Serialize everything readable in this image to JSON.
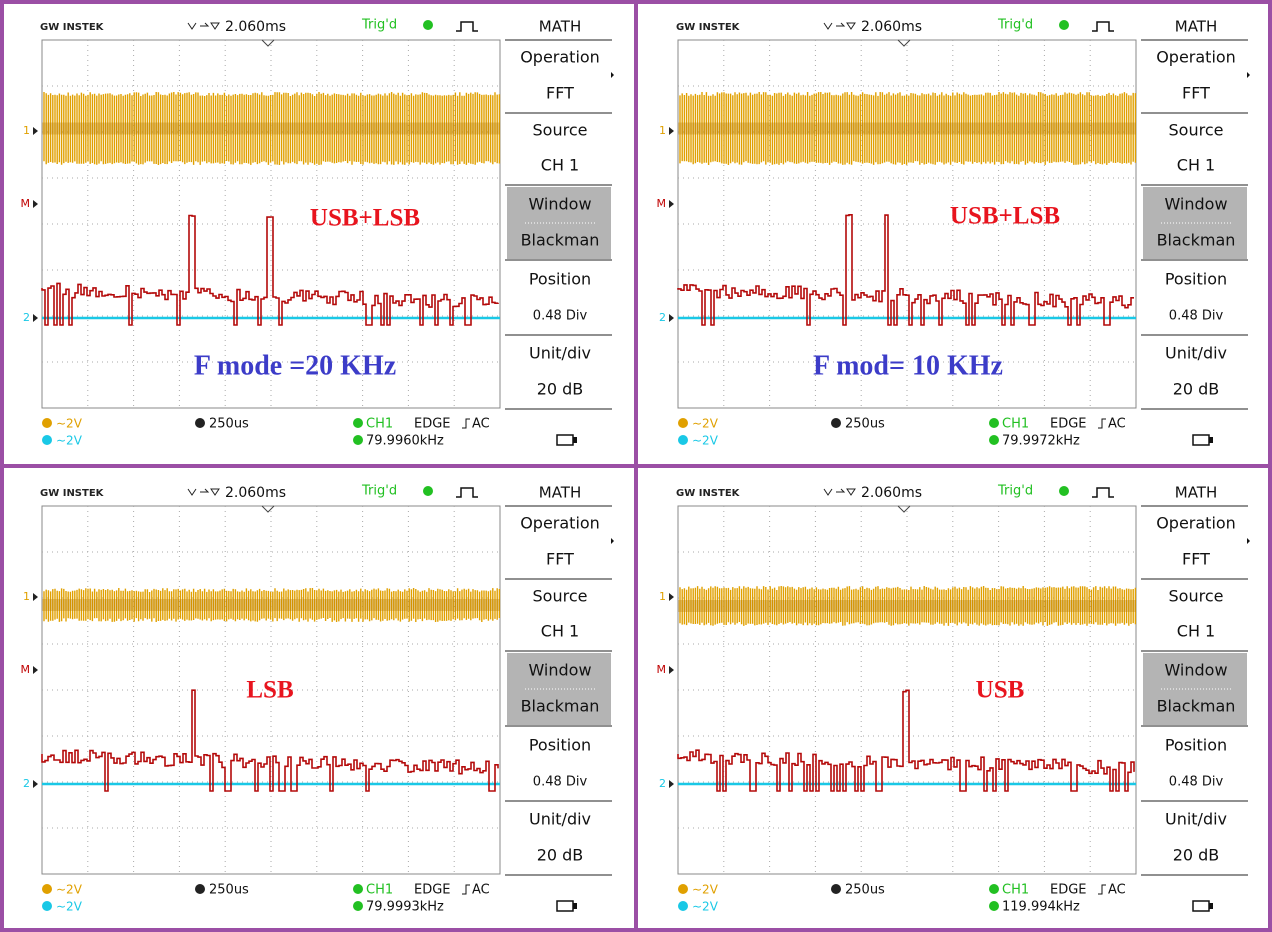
{
  "panels": [
    {
      "header": {
        "brand": "GW INSTEK",
        "delay": "2.060ms",
        "trigger_status": "Trig'd"
      },
      "menu": {
        "title": "MATH",
        "items": [
          "Operation",
          "FFT",
          "Source",
          "CH 1",
          "Window",
          "Blackman",
          "Position",
          "0.48 Div",
          "Unit/div",
          "20 dB"
        ]
      },
      "markers": [
        "1",
        "M",
        "2"
      ],
      "annotations": [
        "USB+LSB",
        "F mode =20 KHz"
      ],
      "footer": {
        "ch1_scale": "∼2V",
        "ch2_scale": "∼2V",
        "timebase": "250us",
        "trigger_source": "CH1",
        "trigger_type": "EDGE",
        "coupling": "AC",
        "frequency": "79.9960kHz"
      }
    },
    {
      "header": {
        "brand": "GW INSTEK",
        "delay": "2.060ms",
        "trigger_status": "Trig'd"
      },
      "menu": {
        "title": "MATH",
        "items": [
          "Operation",
          "FFT",
          "Source",
          "CH 1",
          "Window",
          "Blackman",
          "Position",
          "0.48 Div",
          "Unit/div",
          "20 dB"
        ]
      },
      "markers": [
        "1",
        "M",
        "2"
      ],
      "annotations": [
        "USB+LSB",
        "F mod= 10 KHz"
      ],
      "footer": {
        "ch1_scale": "∼2V",
        "ch2_scale": "∼2V",
        "timebase": "250us",
        "trigger_source": "CH1",
        "trigger_type": "EDGE",
        "coupling": "AC",
        "frequency": "79.9972kHz"
      }
    },
    {
      "header": {
        "brand": "GW INSTEK",
        "delay": "2.060ms",
        "trigger_status": "Trig'd"
      },
      "menu": {
        "title": "MATH",
        "items": [
          "Operation",
          "FFT",
          "Source",
          "CH 1",
          "Window",
          "Blackman",
          "Position",
          "0.48 Div",
          "Unit/div",
          "20 dB"
        ]
      },
      "markers": [
        "1",
        "M",
        "2"
      ],
      "annotations": [
        "LSB"
      ],
      "footer": {
        "ch1_scale": "∼2V",
        "ch2_scale": "∼2V",
        "timebase": "250us",
        "trigger_source": "CH1",
        "trigger_type": "EDGE",
        "coupling": "AC",
        "frequency": "79.9993kHz"
      }
    },
    {
      "header": {
        "brand": "GW INSTEK",
        "delay": "2.060ms",
        "trigger_status": "Trig'd"
      },
      "menu": {
        "title": "MATH",
        "items": [
          "Operation",
          "FFT",
          "Source",
          "CH 1",
          "Window",
          "Blackman",
          "Position",
          "0.48 Div",
          "Unit/div",
          "20 dB"
        ]
      },
      "markers": [
        "1",
        "M",
        "2"
      ],
      "annotations": [
        "USB"
      ],
      "footer": {
        "ch1_scale": "∼2V",
        "ch2_scale": "∼2V",
        "timebase": "250us",
        "trigger_source": "CH1",
        "trigger_type": "EDGE",
        "coupling": "AC",
        "frequency": "119.994kHz"
      }
    }
  ]
}
